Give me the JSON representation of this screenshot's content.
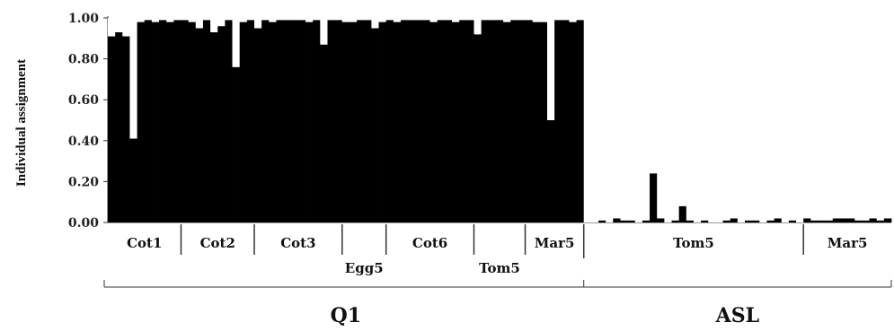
{
  "chart_data": {
    "type": "bar",
    "stacked": true,
    "ylabel": "Individual assignment",
    "ylim": [
      0,
      1
    ],
    "yticks": [
      "0.00",
      "0.20",
      "0.40",
      "0.60",
      "0.80",
      "1.00"
    ],
    "colors": {
      "cluster_1": "#000000",
      "cluster_2": "#ffffff",
      "axis": "#333333"
    },
    "populations": [
      {
        "label": "Cot1",
        "row": 1,
        "group": "Q1",
        "n": 10,
        "values": [
          0.91,
          0.93,
          0.91,
          0.41,
          0.98,
          0.99,
          0.98,
          0.99,
          0.98,
          0.99
        ]
      },
      {
        "label": "Cot2",
        "row": 1,
        "group": "Q1",
        "n": 10,
        "values": [
          0.99,
          0.98,
          0.95,
          0.99,
          0.93,
          0.96,
          0.99,
          0.76,
          0.98,
          0.99
        ]
      },
      {
        "label": "Cot3",
        "row": 1,
        "group": "Q1",
        "n": 12,
        "values": [
          0.95,
          0.99,
          0.98,
          0.99,
          0.99,
          0.99,
          0.99,
          0.98,
          0.99,
          0.87,
          0.99,
          0.99
        ]
      },
      {
        "label": "Egg5",
        "row": 2,
        "group": "Q1",
        "n": 6,
        "values": [
          0.98,
          0.98,
          0.99,
          0.99,
          0.95,
          0.98
        ]
      },
      {
        "label": "Cot6",
        "row": 1,
        "group": "Q1",
        "n": 12,
        "values": [
          0.99,
          0.98,
          0.99,
          0.99,
          0.99,
          0.99,
          0.98,
          0.99,
          0.99,
          0.98,
          0.99,
          0.99
        ]
      },
      {
        "label": "Tom5",
        "row": 2,
        "group": "Q1",
        "n": 7,
        "values": [
          0.92,
          0.99,
          0.99,
          0.99,
          0.98,
          0.99,
          0.99
        ]
      },
      {
        "label": "Mar5",
        "row": 1,
        "group": "Q1",
        "n": 8,
        "values": [
          0.99,
          0.98,
          0.98,
          0.5,
          0.99,
          0.99,
          0.98,
          0.99
        ]
      },
      {
        "label": "Tom5",
        "row": 1,
        "group": "ASL",
        "n": 30,
        "values": [
          0.0,
          0.0,
          0.01,
          0.0,
          0.02,
          0.01,
          0.01,
          0.0,
          0.01,
          0.24,
          0.02,
          0.0,
          0.01,
          0.08,
          0.01,
          0.0,
          0.01,
          0.0,
          0.0,
          0.01,
          0.02,
          0.0,
          0.01,
          0.01,
          0.0,
          0.01,
          0.02,
          0.0,
          0.01,
          0.0
        ]
      },
      {
        "label": "Mar5",
        "row": 1,
        "group": "ASL",
        "n": 12,
        "values": [
          0.02,
          0.01,
          0.01,
          0.01,
          0.02,
          0.02,
          0.02,
          0.01,
          0.01,
          0.02,
          0.01,
          0.02
        ]
      }
    ],
    "groups": [
      {
        "label": "Q1"
      },
      {
        "label": "ASL"
      }
    ]
  }
}
